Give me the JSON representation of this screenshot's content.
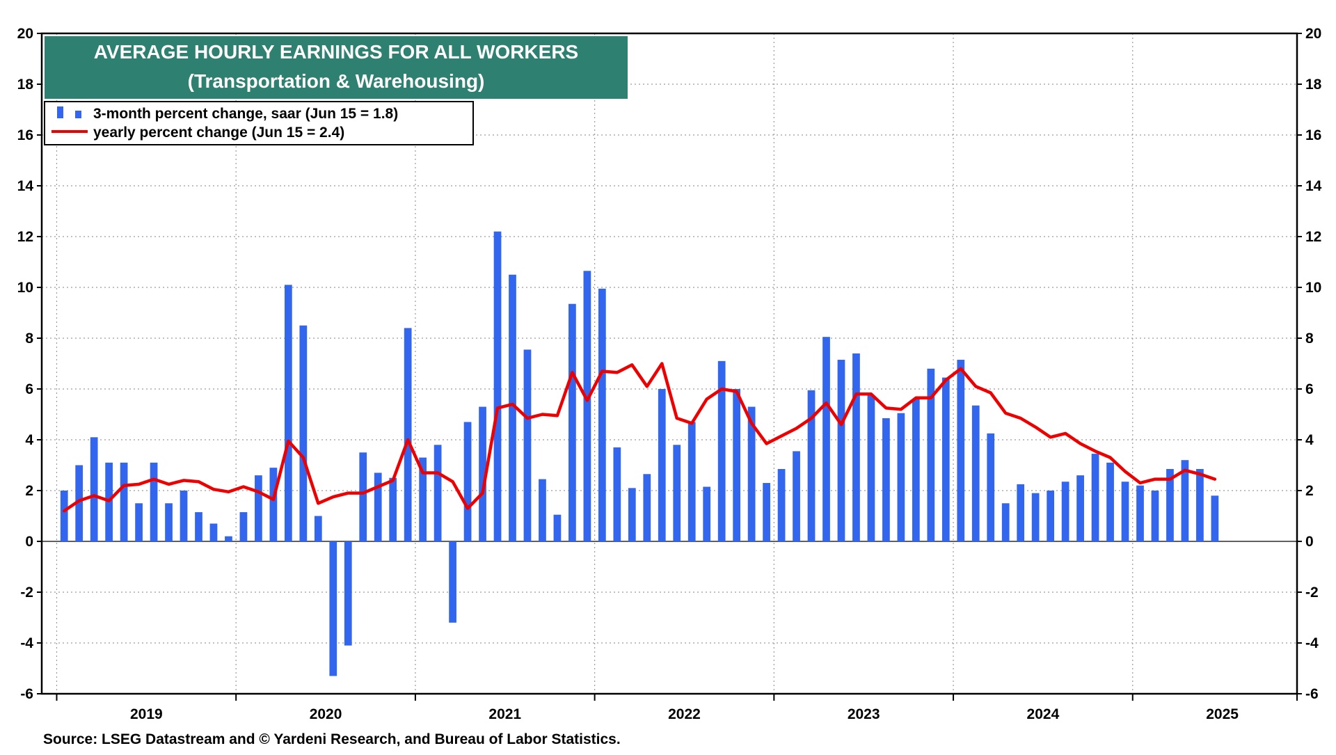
{
  "chart_data": {
    "type": "bar",
    "title": "AVERAGE HOURLY EARNINGS FOR ALL WORKERS",
    "subtitle": "(Transportation & Warehousing)",
    "source": "Source: LSEG Datastream and © Yardeni Research, and Bureau of Labor Statistics.",
    "ylim": [
      -6,
      20
    ],
    "yticks": [
      "20",
      "18",
      "16",
      "14",
      "12",
      "10",
      "8",
      "6",
      "4",
      "2",
      "0",
      "-2",
      "-4",
      "-6"
    ],
    "xlim": [
      "2018-12",
      "2025-12"
    ],
    "year_labels": [
      "2019",
      "2020",
      "2021",
      "2022",
      "2023",
      "2024",
      "2025"
    ],
    "grid": true,
    "legend_position": "top-left",
    "colors": {
      "bars": "#3366ee",
      "line": "#ee0000",
      "title_bg": "#2e8070"
    },
    "series": [
      {
        "name": "3-month percent change, saar (Jun 15 = 1.8)",
        "type": "bar",
        "start": "2019-01",
        "values": [
          2.0,
          3.0,
          4.1,
          3.1,
          3.1,
          1.5,
          3.1,
          1.5,
          2.0,
          1.15,
          0.7,
          0.2,
          1.15,
          2.6,
          2.9,
          10.1,
          8.5,
          1.0,
          -5.3,
          -4.1,
          3.5,
          2.7,
          2.5,
          8.4,
          3.3,
          3.8,
          -3.2,
          4.7,
          5.3,
          12.2,
          10.5,
          7.55,
          2.45,
          1.05,
          9.35,
          10.65,
          9.95,
          3.7,
          2.1,
          2.65,
          6.0,
          3.8,
          4.7,
          2.15,
          7.1,
          6.0,
          5.3,
          2.3,
          2.85,
          3.55,
          5.95,
          8.05,
          7.15,
          7.4,
          5.75,
          4.85,
          5.05,
          5.6,
          6.8,
          6.45,
          7.15,
          5.35,
          4.25,
          1.5,
          2.25,
          1.9,
          2.0,
          2.35,
          2.6,
          3.45,
          3.1,
          2.35,
          2.2,
          2.0,
          2.85,
          3.2,
          2.85,
          1.8
        ]
      },
      {
        "name": "yearly percent change (Jun 15 = 2.4)",
        "type": "line",
        "start": "2019-01",
        "values": [
          1.2,
          1.6,
          1.8,
          1.6,
          2.2,
          2.25,
          2.45,
          2.25,
          2.4,
          2.35,
          2.05,
          1.95,
          2.15,
          1.95,
          1.65,
          3.95,
          3.3,
          1.5,
          1.75,
          1.9,
          1.9,
          2.15,
          2.4,
          4.0,
          2.7,
          2.7,
          2.35,
          1.3,
          1.9,
          5.25,
          5.4,
          4.85,
          5.0,
          4.95,
          6.65,
          5.55,
          6.7,
          6.65,
          6.95,
          6.1,
          7.0,
          4.85,
          4.65,
          5.6,
          6.0,
          5.9,
          4.65,
          3.85,
          4.15,
          4.45,
          4.85,
          5.45,
          4.6,
          5.8,
          5.8,
          5.25,
          5.2,
          5.65,
          5.65,
          6.35,
          6.8,
          6.1,
          5.85,
          5.05,
          4.85,
          4.5,
          4.1,
          4.25,
          3.85,
          3.55,
          3.3,
          2.75,
          2.3,
          2.45,
          2.45,
          2.8,
          2.65,
          2.45
        ]
      }
    ]
  }
}
